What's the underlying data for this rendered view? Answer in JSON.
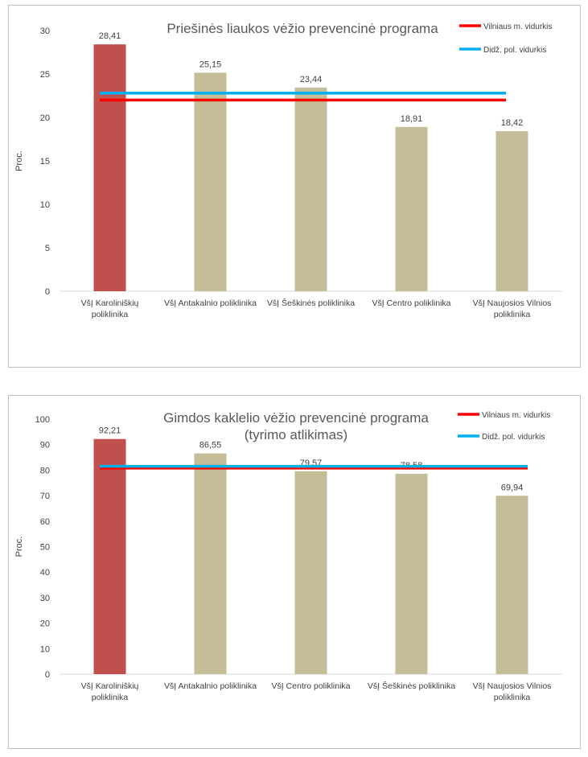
{
  "chart_data": [
    {
      "type": "bar",
      "title_lines": [
        "Priešinės liaukos vėžio prevencinė programa"
      ],
      "ylabel": "Proc.",
      "xlabel": "",
      "ylim": [
        0,
        30
      ],
      "yticks": [
        0,
        5,
        10,
        15,
        20,
        25,
        30
      ],
      "grid": false,
      "legend_position": "top-right",
      "categories": [
        [
          "VšĮ Karoliniškių",
          "poliklinika"
        ],
        [
          "VšĮ Antakalnio poliklinika"
        ],
        [
          "VšĮ Šeškinės poliklinika"
        ],
        [
          "VšĮ Centro poliklinika"
        ],
        [
          "VšĮ Naujosios Vilnios",
          "poliklinika"
        ]
      ],
      "values": [
        28.41,
        25.15,
        23.44,
        18.91,
        18.42
      ],
      "value_labels": [
        "28,41",
        "25,15",
        "23,44",
        "18,91",
        "18,42"
      ],
      "bar_colors": [
        "#c0504d",
        "#c4bd97",
        "#c4bd97",
        "#c4bd97",
        "#c4bd97"
      ],
      "reference_lines": [
        {
          "name": "Vilniaus m. vidurkis",
          "value": 22.0,
          "color": "#ff0000"
        },
        {
          "name": "Didž. pol. vidurkis",
          "value": 22.8,
          "color": "#00b0f0"
        }
      ]
    },
    {
      "type": "bar",
      "title_lines": [
        "Gimdos kaklelio vėžio prevencinė programa",
        "(tyrimo atlikimas)"
      ],
      "ylabel": "Proc.",
      "xlabel": "",
      "ylim": [
        0,
        100
      ],
      "yticks": [
        0,
        10,
        20,
        30,
        40,
        50,
        60,
        70,
        80,
        90,
        100
      ],
      "grid": false,
      "legend_position": "top-right",
      "categories": [
        [
          "VšĮ Karoliniškių",
          "poliklinika"
        ],
        [
          "VšĮ Antakalnio poliklinika"
        ],
        [
          "VšĮ Centro poliklinika"
        ],
        [
          "VšĮ Šeškinės poliklinika"
        ],
        [
          "VšĮ Naujosios Vilnios",
          "poliklinika"
        ]
      ],
      "values": [
        92.21,
        86.55,
        79.57,
        78.58,
        69.94
      ],
      "value_labels": [
        "92,21",
        "86,55",
        "79,57",
        "78,58",
        "69,94"
      ],
      "bar_colors": [
        "#c0504d",
        "#c4bd97",
        "#c4bd97",
        "#c4bd97",
        "#c4bd97"
      ],
      "reference_lines": [
        {
          "name": "Vilniaus m. vidurkis",
          "value": 80.8,
          "color": "#ff0000"
        },
        {
          "name": "Didž. pol. vidurkis",
          "value": 81.5,
          "color": "#00b0f0"
        }
      ]
    }
  ]
}
